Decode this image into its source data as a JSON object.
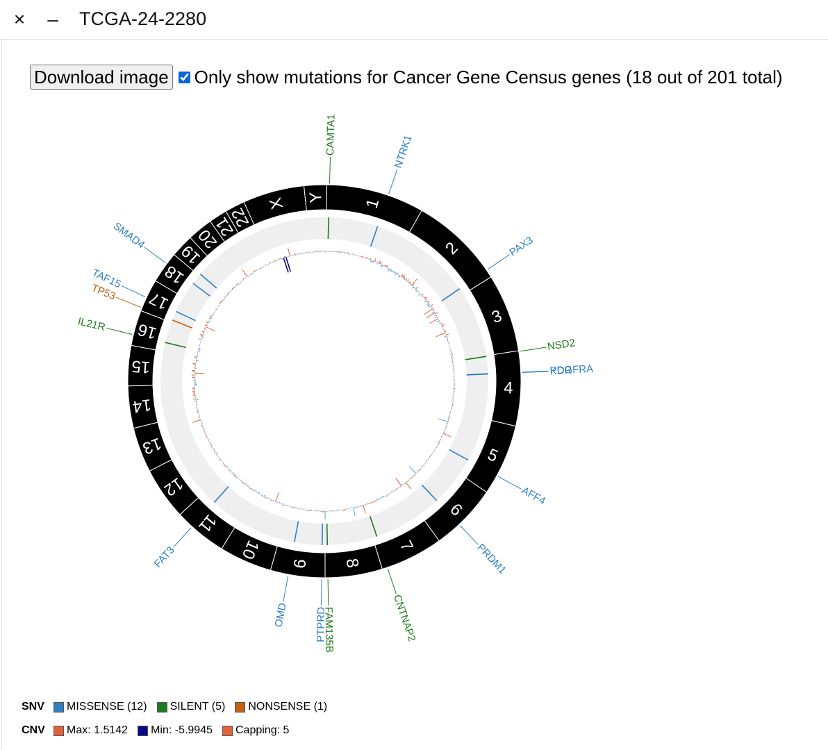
{
  "window": {
    "title": "TCGA-24-2280",
    "close_glyph": "×",
    "minimize_glyph": "–"
  },
  "controls": {
    "download_label": "Download image",
    "cgc_checked": true,
    "cgc_label": "Only show mutations for Cancer Gene Census genes (18 out of 201 total)"
  },
  "chromosomes": [
    {
      "name": "1",
      "size": 248.9
    },
    {
      "name": "2",
      "size": 242.2
    },
    {
      "name": "3",
      "size": 198.3
    },
    {
      "name": "4",
      "size": 190.2
    },
    {
      "name": "5",
      "size": 181.5
    },
    {
      "name": "6",
      "size": 170.8
    },
    {
      "name": "7",
      "size": 159.3
    },
    {
      "name": "8",
      "size": 145.1
    },
    {
      "name": "9",
      "size": 138.4
    },
    {
      "name": "10",
      "size": 133.8
    },
    {
      "name": "11",
      "size": 135.1
    },
    {
      "name": "12",
      "size": 133.3
    },
    {
      "name": "13",
      "size": 114.4
    },
    {
      "name": "14",
      "size": 107.0
    },
    {
      "name": "15",
      "size": 102.0
    },
    {
      "name": "16",
      "size": 90.3
    },
    {
      "name": "17",
      "size": 83.3
    },
    {
      "name": "18",
      "size": 80.4
    },
    {
      "name": "19",
      "size": 58.6
    },
    {
      "name": "20",
      "size": 64.4
    },
    {
      "name": "21",
      "size": 46.7
    },
    {
      "name": "22",
      "size": 50.8
    },
    {
      "name": "X",
      "size": 156.0
    },
    {
      "name": "Y",
      "size": 57.2
    }
  ],
  "mutations": [
    {
      "gene": "CAMTA1",
      "type": "SILENT",
      "chrom": "1",
      "pos": 7.0
    },
    {
      "gene": "NTRK1",
      "type": "MISSENSE",
      "chrom": "1",
      "pos": 156.8
    },
    {
      "gene": "PAX3",
      "type": "MISSENSE",
      "chrom": "2",
      "pos": 222.1
    },
    {
      "gene": "NSD2",
      "type": "SILENT",
      "chrom": "4",
      "pos": 1.9
    },
    {
      "gene": "PDGFRA",
      "type": "MISSENSE",
      "chrom": "4",
      "pos": 54.2
    },
    {
      "gene": "KDR",
      "type": "MISSENSE",
      "chrom": "4",
      "pos": 55.1
    },
    {
      "gene": "AFF4",
      "type": "MISSENSE",
      "chrom": "5",
      "pos": 132.9
    },
    {
      "gene": "PRDM1",
      "type": "MISSENSE",
      "chrom": "6",
      "pos": 106.1
    },
    {
      "gene": "CNTNAP2",
      "type": "SILENT",
      "chrom": "7",
      "pos": 146.1
    },
    {
      "gene": "FAM135B",
      "type": "SILENT",
      "chrom": "8",
      "pos": 138.1
    },
    {
      "gene": "PTPRD",
      "type": "MISSENSE",
      "chrom": "9",
      "pos": 8.5
    },
    {
      "gene": "OMD",
      "type": "MISSENSE",
      "chrom": "9",
      "pos": 92.4
    },
    {
      "gene": "FAT3",
      "type": "MISSENSE",
      "chrom": "11",
      "pos": 92.3
    },
    {
      "gene": "IL21R",
      "type": "SILENT",
      "chrom": "16",
      "pos": 27.4
    },
    {
      "gene": "TP53",
      "type": "NONSENSE",
      "chrom": "17",
      "pos": 7.7
    },
    {
      "gene": "TAF15",
      "type": "MISSENSE",
      "chrom": "17",
      "pos": 35.8
    },
    {
      "gene": "SMAD4",
      "type": "MISSENSE",
      "chrom": "18",
      "pos": 51.0
    },
    {
      "gene": "",
      "type": "MISSENSE",
      "chrom": "19",
      "pos": 6.0
    }
  ],
  "colors": {
    "MISSENSE": "#2f7fc1",
    "SILENT": "#1e7a1e",
    "NONSENSE": "#c3600f",
    "cnv_max": "#e0633a",
    "cnv_min": "#0a0a8a",
    "capping": "#e0633a",
    "cnv_low": "#5aa7d6"
  },
  "legend": {
    "snv_label": "SNV",
    "missense": "MISSENSE (12)",
    "silent": "SILENT (5)",
    "nonsense": "NONSENSE (1)",
    "cnv_label": "CNV",
    "max": "Max: 1.5142",
    "min": "Min: -5.9945",
    "capping": "Capping: 5"
  }
}
